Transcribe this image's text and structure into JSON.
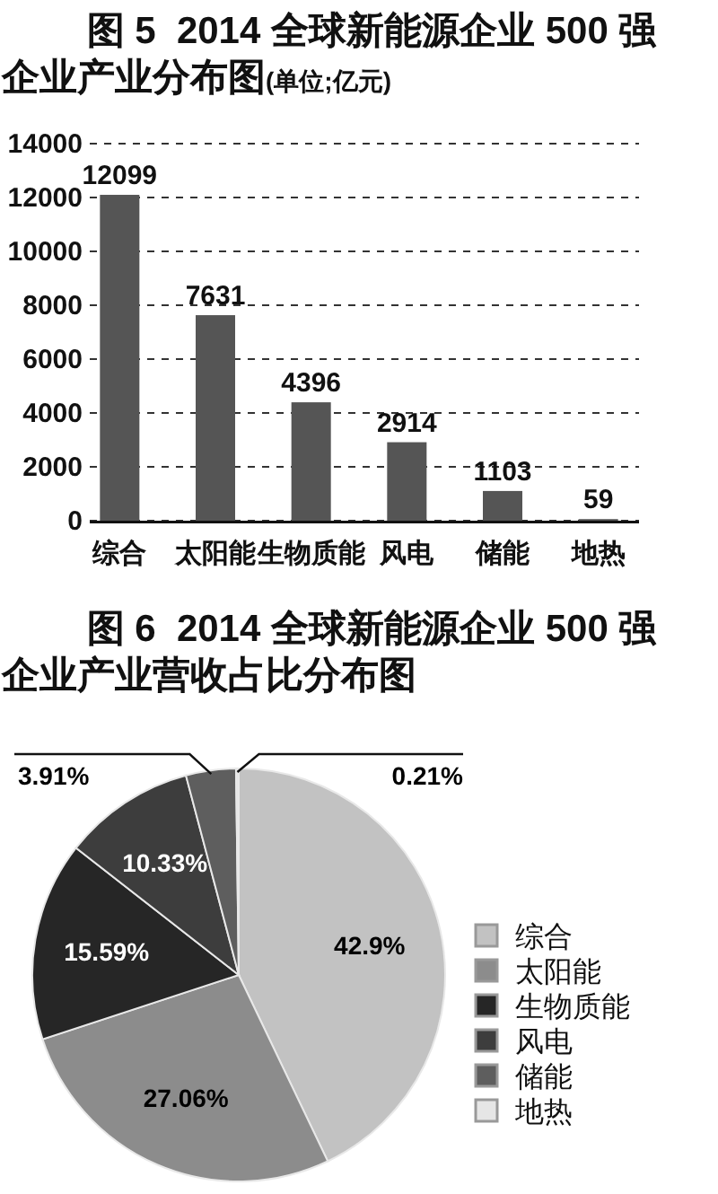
{
  "chart_data": [
    {
      "type": "bar",
      "title": "图 5  2014 全球新能源企业 500 强企业产业分布图(单位;亿元)",
      "categories": [
        "综合",
        "太阳能",
        "生物质能",
        "风电",
        "储能",
        "地热"
      ],
      "values": [
        12099,
        7631,
        4396,
        2914,
        1103,
        59
      ],
      "color": "#555555",
      "ylim": [
        0,
        14000
      ],
      "yticks": [
        0,
        2000,
        4000,
        6000,
        8000,
        10000,
        12000,
        14000
      ],
      "grid": "y",
      "data_labels": true
    },
    {
      "type": "pie",
      "title": "图 6  2014 全球新能源企业 500 强企业产业营收占比分布图",
      "categories": [
        "综合",
        "太阳能",
        "生物质能",
        "风电",
        "储能",
        "地热"
      ],
      "values": [
        42.9,
        27.06,
        15.59,
        10.33,
        3.91,
        0.21
      ],
      "colors": [
        "#c2c2c2",
        "#8c8c8c",
        "#262626",
        "#3d3d3d",
        "#5e5e5e",
        "#e6e6e6"
      ],
      "value_labels": [
        "42.9%",
        "27.06%",
        "15.59%",
        "10.33%",
        "3.91%",
        "0.21%"
      ],
      "legend": "right"
    }
  ]
}
